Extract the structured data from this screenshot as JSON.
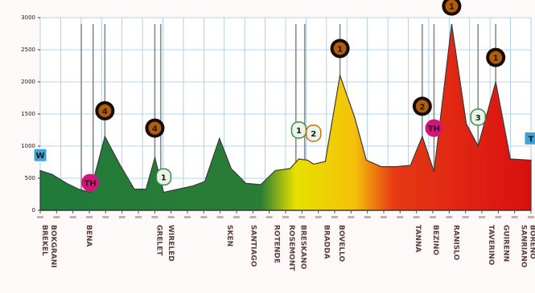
{
  "chart_data": {
    "type": "area",
    "title": "",
    "xlabel": "",
    "ylabel": "",
    "y_unit_label": "",
    "ylim": [
      0,
      3000
    ],
    "yticks": [
      0,
      500,
      1000,
      1500,
      2000,
      2500,
      3000
    ],
    "ytick_labels": [
      "0",
      "500",
      "1000",
      "1500",
      "2000",
      "2500",
      "3000"
    ],
    "grid": true,
    "fill_gradient": [
      "#1f7a3a",
      "#2b7d35",
      "#e8e000",
      "#f4c20a",
      "#e53a14",
      "#d90f0f"
    ],
    "profile": [
      {
        "km": 0,
        "alt": 620
      },
      {
        "km": 4,
        "alt": 560
      },
      {
        "km": 9,
        "alt": 420
      },
      {
        "km": 13,
        "alt": 330
      },
      {
        "km": 17,
        "alt": 280
      },
      {
        "km": 22,
        "alt": 1150
      },
      {
        "km": 27,
        "alt": 720
      },
      {
        "km": 32,
        "alt": 330
      },
      {
        "km": 36,
        "alt": 330
      },
      {
        "km": 39,
        "alt": 820
      },
      {
        "km": 42,
        "alt": 280
      },
      {
        "km": 47,
        "alt": 330
      },
      {
        "km": 52,
        "alt": 380
      },
      {
        "km": 56,
        "alt": 450
      },
      {
        "km": 61,
        "alt": 1120
      },
      {
        "km": 65,
        "alt": 650
      },
      {
        "km": 70,
        "alt": 420
      },
      {
        "km": 75,
        "alt": 400
      },
      {
        "km": 80,
        "alt": 620
      },
      {
        "km": 85,
        "alt": 650
      },
      {
        "km": 88,
        "alt": 800
      },
      {
        "km": 91,
        "alt": 780
      },
      {
        "km": 93,
        "alt": 720
      },
      {
        "km": 97,
        "alt": 760
      },
      {
        "km": 102,
        "alt": 2100
      },
      {
        "km": 107,
        "alt": 1450
      },
      {
        "km": 111,
        "alt": 780
      },
      {
        "km": 116,
        "alt": 680
      },
      {
        "km": 121,
        "alt": 680
      },
      {
        "km": 126,
        "alt": 700
      },
      {
        "km": 130,
        "alt": 1150
      },
      {
        "km": 134,
        "alt": 600
      },
      {
        "km": 140,
        "alt": 2900
      },
      {
        "km": 145,
        "alt": 1350
      },
      {
        "km": 149,
        "alt": 1000
      },
      {
        "km": 155,
        "alt": 2000
      },
      {
        "km": 160,
        "alt": 800
      },
      {
        "km": 167,
        "alt": 780
      }
    ],
    "markers": [
      {
        "km": 0,
        "alt": 860,
        "type": "start",
        "symbol": "W",
        "color": "#3aa3d9"
      },
      {
        "km": 17,
        "alt": 430,
        "type": "sprint",
        "symbol": "TH",
        "color": "#d4147a"
      },
      {
        "km": 22,
        "alt": 1550,
        "type": "climb",
        "symbol": "4",
        "color": "#b25d0e"
      },
      {
        "km": 39,
        "alt": 1280,
        "type": "climb",
        "symbol": "4",
        "color": "#b25d0e"
      },
      {
        "km": 42,
        "alt": 520,
        "type": "feed",
        "symbol": "1",
        "color": "#3a8a4c"
      },
      {
        "km": 88,
        "alt": 1250,
        "type": "feed",
        "symbol": "1",
        "color": "#3a8a4c"
      },
      {
        "km": 93,
        "alt": 1200,
        "type": "feed",
        "symbol": "2",
        "color": "#d46b10"
      },
      {
        "km": 102,
        "alt": 2520,
        "type": "climb",
        "symbol": "1",
        "color": "#b25d0e"
      },
      {
        "km": 130,
        "alt": 1620,
        "type": "climb",
        "symbol": "2",
        "color": "#b25d0e"
      },
      {
        "km": 134,
        "alt": 1280,
        "type": "sprint",
        "symbol": "TH",
        "color": "#d4147a"
      },
      {
        "km": 140,
        "alt": 3180,
        "type": "climb",
        "symbol": "1",
        "color": "#b25d0e"
      },
      {
        "km": 149,
        "alt": 1450,
        "type": "feed",
        "symbol": "3",
        "color": "#3a8a4c"
      },
      {
        "km": 155,
        "alt": 2380,
        "type": "climb",
        "symbol": "1",
        "color": "#b25d0e"
      },
      {
        "km": 167,
        "alt": 1120,
        "type": "finish",
        "symbol": "T",
        "color": "#3aa3d9"
      }
    ],
    "location_lines": [
      14,
      18,
      22,
      39,
      41,
      87,
      90,
      102,
      130,
      134,
      140,
      149,
      155
    ],
    "x_tick_count": 30,
    "location_labels": [
      "BREKEL",
      "BOKGRANI",
      "BENA",
      "GRELET",
      "WIRELED",
      "SKEN",
      "SANTIAGO",
      "ROTENDE",
      "ROSEMONT",
      "BRESKANO",
      "BRADDA",
      "BOVELLO",
      "TANNA",
      "BEZINO",
      "RANISLO",
      "TAVERINO",
      "GUIRENN",
      "SANRIANO",
      "BORENO"
    ],
    "label_km": [
      0,
      3,
      15,
      39,
      43,
      63,
      71,
      79,
      84,
      88,
      96,
      101,
      127,
      133,
      140,
      152,
      157,
      163,
      166
    ],
    "category_labels": [
      "TH",
      "TH"
    ]
  }
}
